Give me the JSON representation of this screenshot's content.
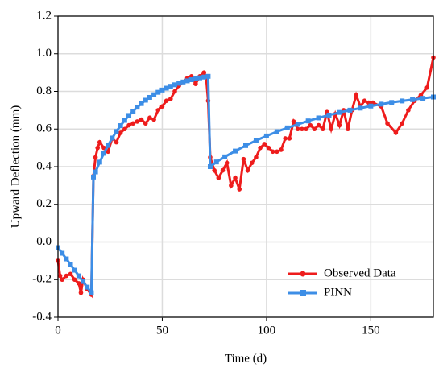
{
  "chart_data": {
    "type": "line",
    "xlabel": "Time (d)",
    "ylabel": "Upward Deflection (mm)",
    "xlim": [
      0,
      180
    ],
    "xticks": [
      0,
      50,
      100,
      150
    ],
    "ylim": [
      -0.4,
      1.2
    ],
    "yticks": [
      -0.4,
      -0.2,
      {
        "value": 0,
        "label": "0.0"
      },
      0.2,
      0.4,
      0.6,
      0.8,
      {
        "value": 1,
        "label": "1.0"
      },
      1.2
    ],
    "grid": true,
    "legend": "lower right",
    "series": [
      {
        "name": "Observed Data",
        "color": "#ee1c1c",
        "marker": "circle",
        "x": [
          0,
          1,
          2,
          4,
          6,
          8,
          10,
          11,
          12,
          14,
          16,
          17,
          18,
          19,
          20,
          22,
          24,
          26,
          28,
          30,
          32,
          34,
          36,
          38,
          40,
          42,
          44,
          46,
          48,
          50,
          52,
          54,
          56,
          58,
          60,
          62,
          64,
          66,
          68,
          70,
          71,
          72,
          73,
          75,
          77,
          79,
          81,
          83,
          85,
          87,
          89,
          91,
          93,
          95,
          97,
          99,
          101,
          103,
          105,
          107,
          109,
          111,
          113,
          115,
          117,
          119,
          121,
          123,
          125,
          127,
          129,
          131,
          133,
          135,
          137,
          139,
          141,
          143,
          145,
          147,
          149,
          151,
          155,
          158,
          162,
          165,
          168,
          171,
          174,
          177,
          180
        ],
        "values": [
          -0.1,
          -0.18,
          -0.2,
          -0.18,
          -0.17,
          -0.2,
          -0.22,
          -0.27,
          -0.2,
          -0.25,
          -0.28,
          0.35,
          0.45,
          0.5,
          0.53,
          0.5,
          0.48,
          0.55,
          0.53,
          0.58,
          0.6,
          0.62,
          0.63,
          0.64,
          0.65,
          0.63,
          0.66,
          0.65,
          0.7,
          0.72,
          0.75,
          0.76,
          0.8,
          0.83,
          0.85,
          0.87,
          0.88,
          0.84,
          0.88,
          0.9,
          0.88,
          0.75,
          0.45,
          0.38,
          0.34,
          0.38,
          0.42,
          0.3,
          0.34,
          0.28,
          0.44,
          0.38,
          0.42,
          0.45,
          0.5,
          0.52,
          0.5,
          0.48,
          0.48,
          0.49,
          0.55,
          0.55,
          0.64,
          0.6,
          0.6,
          0.6,
          0.62,
          0.6,
          0.62,
          0.6,
          0.69,
          0.6,
          0.68,
          0.62,
          0.7,
          0.6,
          0.7,
          0.78,
          0.72,
          0.75,
          0.74,
          0.74,
          0.72,
          0.63,
          0.58,
          0.63,
          0.7,
          0.75,
          0.78,
          0.82,
          0.98
        ]
      },
      {
        "name": "PINN",
        "color": "#3d8ee6",
        "marker": "square",
        "x": [
          0,
          2,
          4,
          6,
          8,
          10,
          12,
          14,
          16,
          17,
          18,
          20,
          22,
          24,
          26,
          28,
          30,
          32,
          34,
          36,
          38,
          40,
          42,
          44,
          46,
          48,
          50,
          52,
          54,
          56,
          58,
          60,
          62,
          64,
          66,
          68,
          70,
          72,
          73,
          76,
          80,
          85,
          90,
          95,
          100,
          105,
          110,
          115,
          120,
          125,
          130,
          135,
          140,
          145,
          150,
          155,
          160,
          165,
          170,
          175,
          180
        ],
        "values": [
          -0.03,
          -0.06,
          -0.09,
          -0.12,
          -0.15,
          -0.18,
          -0.21,
          -0.24,
          -0.27,
          0.345,
          0.372,
          0.424,
          0.471,
          0.513,
          0.552,
          0.587,
          0.618,
          0.646,
          0.672,
          0.695,
          0.716,
          0.735,
          0.753,
          0.768,
          0.782,
          0.795,
          0.807,
          0.817,
          0.827,
          0.835,
          0.843,
          0.85,
          0.856,
          0.862,
          0.867,
          0.872,
          0.876,
          0.88,
          0.4,
          0.425,
          0.452,
          0.483,
          0.512,
          0.539,
          0.563,
          0.586,
          0.606,
          0.625,
          0.643,
          0.659,
          0.674,
          0.688,
          0.7,
          0.711,
          0.722,
          0.732,
          0.741,
          0.749,
          0.756,
          0.763,
          0.77
        ]
      }
    ]
  }
}
